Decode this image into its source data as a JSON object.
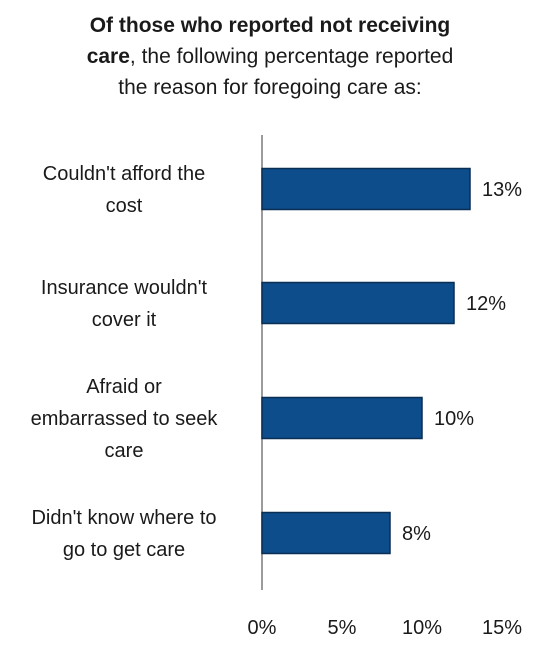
{
  "title": {
    "line1": "Of those who reported not receiving",
    "line2_bold": "care",
    "line2_rest": ", the following percentage reported",
    "line3": "the reason for foregoing care as:"
  },
  "chart_data": {
    "type": "bar",
    "orientation": "horizontal",
    "title": "Of those who reported not receiving care, the following percentage reported the reason for foregoing care as:",
    "categories": [
      [
        "Couldn't afford the",
        "cost"
      ],
      [
        "Insurance wouldn't",
        "cover it"
      ],
      [
        "Afraid or",
        "embarrassed to seek",
        "care"
      ],
      [
        "Didn't know where to",
        "go to get care"
      ]
    ],
    "values": [
      13,
      12,
      10,
      8
    ],
    "value_labels": [
      "13%",
      "12%",
      "10%",
      "8%"
    ],
    "xlim": [
      0,
      15
    ],
    "xticks": [
      0,
      5,
      10,
      15
    ],
    "xtick_labels": [
      "0%",
      "5%",
      "10%",
      "15%"
    ],
    "bar_color": "#0d4d8c",
    "bar_edge_color": "#0a2f55",
    "grid": false,
    "legend": "none"
  }
}
